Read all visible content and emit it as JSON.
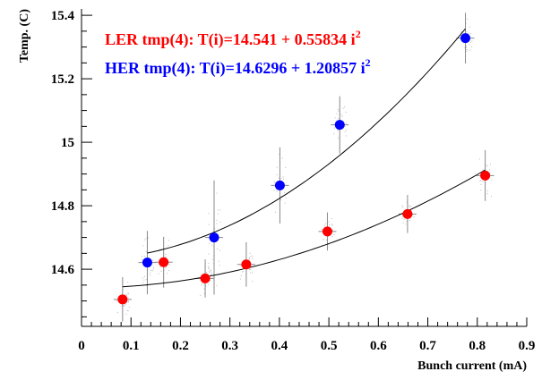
{
  "chart_data": {
    "type": "scatter",
    "title": "",
    "xlabel": "Bunch current (mA)",
    "ylabel": "Temp. (C)",
    "xlim": [
      0,
      0.9
    ],
    "ylim": [
      14.42,
      15.42
    ],
    "x_ticks": [
      "0",
      "0.1",
      "0.2",
      "0.3",
      "0.4",
      "0.5",
      "0.6",
      "0.7",
      "0.8",
      "0.9"
    ],
    "y_ticks": [
      "14.6",
      "14.8",
      "15",
      "15.2",
      "15.4"
    ],
    "grid": false,
    "legend_position": "top-left",
    "series": [
      {
        "name": "LER tmp(4):",
        "color": "#ff0000",
        "legend_text": "LER tmp(4): T(i)=14.541 + 0.55834 i",
        "x": [
          0.083,
          0.166,
          0.25,
          0.333,
          0.497,
          0.659,
          0.816
        ],
        "y": [
          14.505,
          14.622,
          14.571,
          14.615,
          14.719,
          14.774,
          14.895
        ],
        "y_err": [
          0.07,
          0.08,
          0.06,
          0.07,
          0.06,
          0.06,
          0.08
        ],
        "fit": {
          "a": 14.541,
          "b": 0.55834,
          "x_range": [
            0.083,
            0.816
          ]
        }
      },
      {
        "name": "HER tmp(4):",
        "color": "#0000ff",
        "legend_text": "HER tmp(4): T(i)=14.6296 + 1.20857 i",
        "x": [
          0.133,
          0.268,
          0.401,
          0.522,
          0.776
        ],
        "y": [
          14.621,
          14.7,
          14.864,
          15.055,
          15.328
        ],
        "y_err": [
          0.1,
          0.18,
          0.12,
          0.09,
          0.08
        ],
        "fit": {
          "a": 14.6296,
          "b": 1.20857,
          "x_range": [
            0.133,
            0.776
          ]
        }
      }
    ],
    "legend_superscript": "2"
  }
}
